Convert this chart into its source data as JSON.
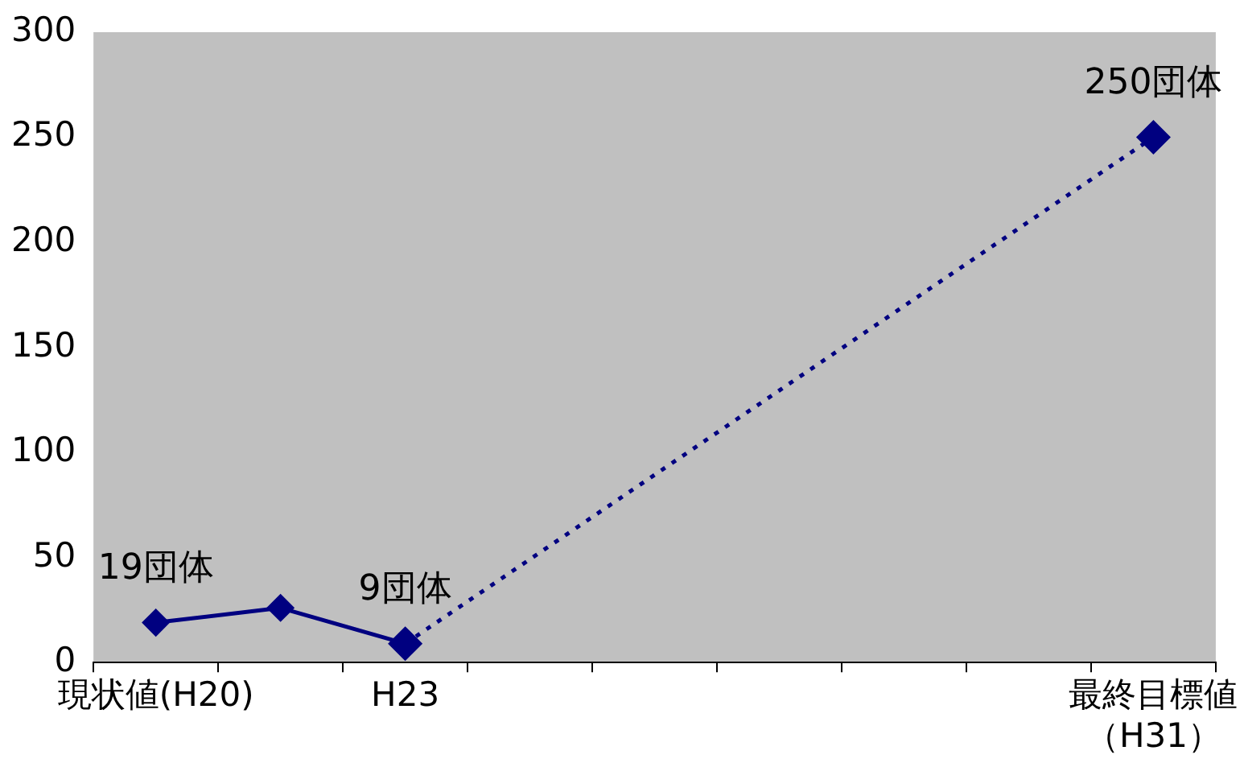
{
  "chart_data": {
    "type": "line",
    "categories": [
      "現状値(H20)",
      null,
      "H23",
      null,
      null,
      null,
      null,
      null,
      "最終目標値（H31）"
    ],
    "series": [
      {
        "color": "#000080",
        "values": [
          19,
          26,
          9,
          null,
          null,
          null,
          null,
          null,
          null
        ],
        "value_labels": [
          "19団体",
          null,
          "9団体",
          null,
          null,
          null,
          null,
          null,
          null
        ],
        "line_style": "solid"
      },
      {
        "color": "#000080",
        "values": [
          null,
          null,
          9,
          null,
          null,
          null,
          null,
          null,
          250
        ],
        "value_labels": [
          null,
          null,
          null,
          null,
          null,
          null,
          null,
          null,
          "250団体"
        ],
        "line_style": "dotted"
      }
    ],
    "ylim": [
      0,
      300
    ],
    "yticks": [
      0,
      50,
      100,
      150,
      200,
      250,
      300
    ],
    "marker": "diamond",
    "grid": false,
    "legend": false
  }
}
